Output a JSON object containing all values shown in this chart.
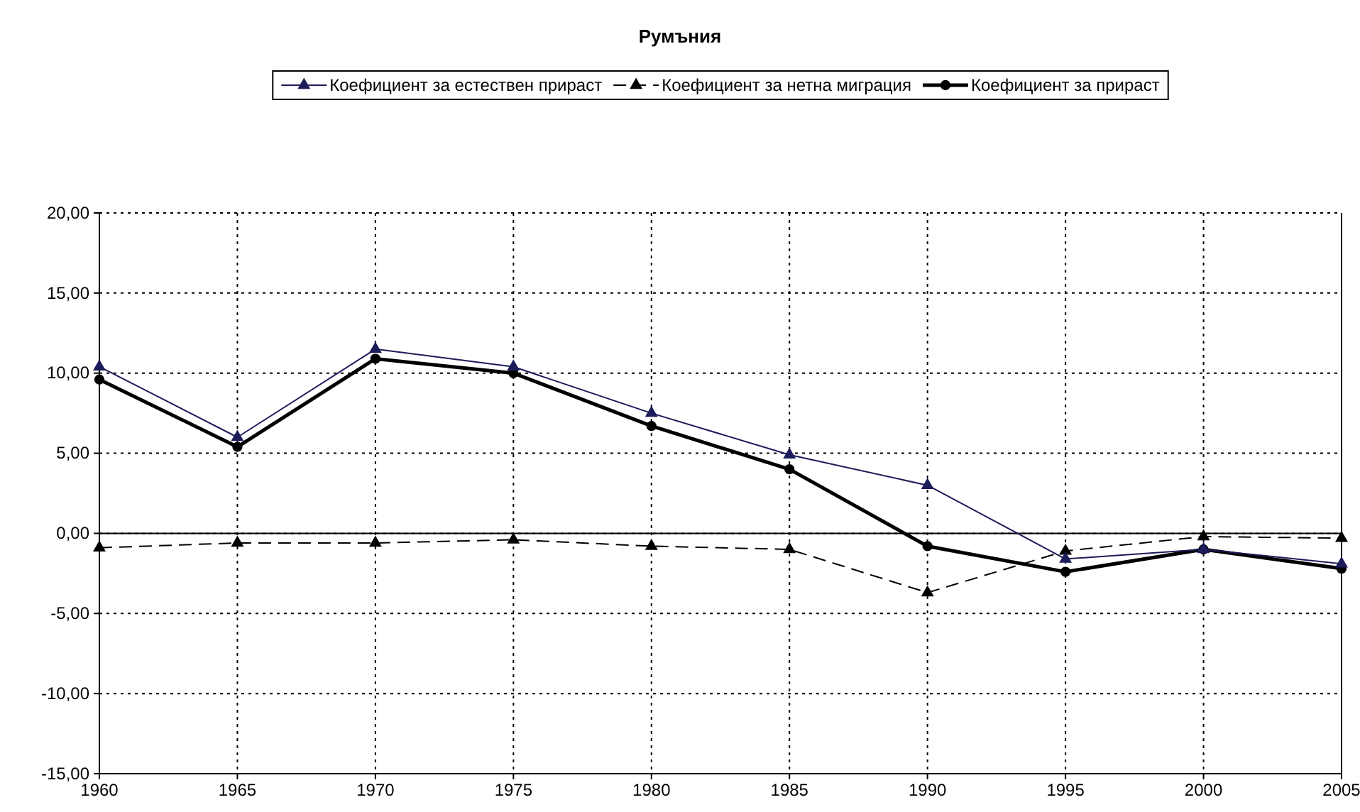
{
  "chart_data": {
    "type": "line",
    "title": "Румъния",
    "categories": [
      "1960",
      "1965",
      "1970",
      "1975",
      "1980",
      "1985",
      "1990",
      "1995",
      "2000",
      "2005"
    ],
    "series": [
      {
        "name": "Коефициент за естествен прираст",
        "color": "#1c1c5a",
        "marker": "triangle",
        "line_style": "solid",
        "values": [
          10.4,
          6.0,
          11.5,
          10.4,
          7.5,
          4.9,
          3.0,
          -1.6,
          -1.0,
          -1.9
        ]
      },
      {
        "name": "Коефициент за нетна миграция",
        "color": "#000000",
        "marker": "triangle",
        "line_style": "dashed",
        "values": [
          -0.9,
          -0.6,
          -0.6,
          -0.4,
          -0.8,
          -1.0,
          -3.7,
          -1.1,
          -0.2,
          -0.3
        ]
      },
      {
        "name": "Коефициент за прираст",
        "color": "#000000",
        "marker": "circle",
        "line_style": "solid",
        "values": [
          9.6,
          5.4,
          10.9,
          10.0,
          6.7,
          4.0,
          -0.8,
          -2.4,
          -1.0,
          -2.2
        ]
      }
    ],
    "ylim": [
      -15,
      20
    ],
    "yticks": [
      {
        "value": -15,
        "label": "-15,00"
      },
      {
        "value": -10,
        "label": "-10,00"
      },
      {
        "value": -5,
        "label": "-5,00"
      },
      {
        "value": 0,
        "label": "0,00"
      },
      {
        "value": 5,
        "label": "5,00"
      },
      {
        "value": 10,
        "label": "10,00"
      },
      {
        "value": 15,
        "label": "15,00"
      },
      {
        "value": 20,
        "label": "20,00"
      }
    ],
    "grid": true,
    "legend": "top"
  }
}
